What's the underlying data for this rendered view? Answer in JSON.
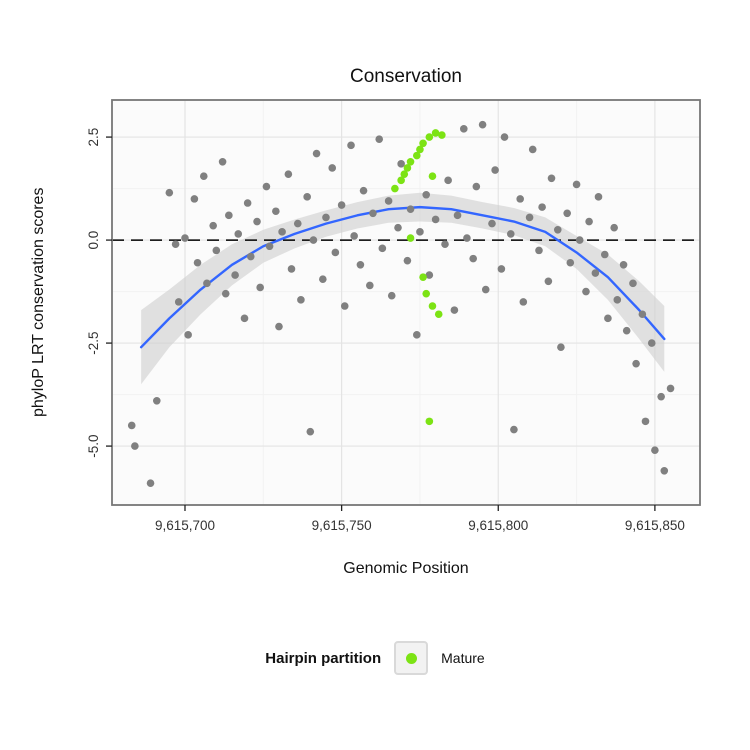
{
  "title": "Conservation",
  "axes": {
    "x_label": "Genomic Position",
    "y_label": "phyloP LRT conservation scores"
  },
  "legend": {
    "title": "Hairpin partition",
    "items": [
      {
        "label": "Mature",
        "color": "#7CE314"
      }
    ]
  },
  "colors": {
    "panel_bg": "#FBFBFB",
    "grid_major": "#E4E4E4",
    "grid_minor": "#F2F2F2",
    "panel_border": "#777777",
    "tick_text": "#333333",
    "point_other": "#808080",
    "point_mature": "#7CE314",
    "trend_line": "#3366FF",
    "ribbon": "#CFCFCF",
    "zero_line": "#000000"
  },
  "chart_data": {
    "type": "scatter",
    "title": "Conservation",
    "xlabel": "Genomic Position",
    "ylabel": "phyloP LRT conservation scores",
    "xlim": [
      9615676.7,
      9615864.4
    ],
    "ylim": [
      -6.43,
      3.4
    ],
    "x_ticks": {
      "values": [
        9615700,
        9615750,
        9615800,
        9615850
      ],
      "labels": [
        "9,615,700",
        "9,615,750",
        "9,615,800",
        "9,615,850"
      ]
    },
    "x_minor_ticks": [
      9615725,
      9615775,
      9615825
    ],
    "y_ticks": {
      "values": [
        2.5,
        0.0,
        -2.5,
        -5.0
      ],
      "labels": [
        "2.5",
        "0.0",
        "-2.5",
        "-5.0"
      ]
    },
    "y_minor_ticks": [
      1.25,
      -1.25,
      -3.75
    ],
    "reference_line_y": 0.0,
    "legend_position": "bottom",
    "grid": true,
    "series": [
      {
        "name": "Other",
        "type": "scatter",
        "color": "#808080",
        "points": [
          [
            9615683,
            -4.5
          ],
          [
            9615684,
            -5.0
          ],
          [
            9615689,
            -5.9
          ],
          [
            9615691,
            -3.9
          ],
          [
            9615695,
            1.15
          ],
          [
            9615697,
            -0.1
          ],
          [
            9615698,
            -1.5
          ],
          [
            9615700,
            0.05
          ],
          [
            9615701,
            -2.3
          ],
          [
            9615703,
            1.0
          ],
          [
            9615704,
            -0.55
          ],
          [
            9615706,
            1.55
          ],
          [
            9615707,
            -1.05
          ],
          [
            9615709,
            0.35
          ],
          [
            9615710,
            -0.25
          ],
          [
            9615712,
            1.9
          ],
          [
            9615713,
            -1.3
          ],
          [
            9615714,
            0.6
          ],
          [
            9615716,
            -0.85
          ],
          [
            9615717,
            0.15
          ],
          [
            9615719,
            -1.9
          ],
          [
            9615720,
            0.9
          ],
          [
            9615721,
            -0.4
          ],
          [
            9615723,
            0.45
          ],
          [
            9615724,
            -1.15
          ],
          [
            9615726,
            1.3
          ],
          [
            9615727,
            -0.15
          ],
          [
            9615729,
            0.7
          ],
          [
            9615730,
            -2.1
          ],
          [
            9615731,
            0.2
          ],
          [
            9615733,
            1.6
          ],
          [
            9615734,
            -0.7
          ],
          [
            9615736,
            0.4
          ],
          [
            9615737,
            -1.45
          ],
          [
            9615739,
            1.05
          ],
          [
            9615740,
            -4.65
          ],
          [
            9615741,
            0.0
          ],
          [
            9615742,
            2.1
          ],
          [
            9615744,
            -0.95
          ],
          [
            9615745,
            0.55
          ],
          [
            9615747,
            1.75
          ],
          [
            9615748,
            -0.3
          ],
          [
            9615750,
            0.85
          ],
          [
            9615751,
            -1.6
          ],
          [
            9615753,
            2.3
          ],
          [
            9615754,
            0.1
          ],
          [
            9615756,
            -0.6
          ],
          [
            9615757,
            1.2
          ],
          [
            9615759,
            -1.1
          ],
          [
            9615760,
            0.65
          ],
          [
            9615762,
            2.45
          ],
          [
            9615763,
            -0.2
          ],
          [
            9615765,
            0.95
          ],
          [
            9615766,
            -1.35
          ],
          [
            9615768,
            0.3
          ],
          [
            9615769,
            1.85
          ],
          [
            9615771,
            -0.5
          ],
          [
            9615772,
            0.75
          ],
          [
            9615774,
            -2.3
          ],
          [
            9615775,
            0.2
          ],
          [
            9615777,
            1.1
          ],
          [
            9615778,
            -0.85
          ],
          [
            9615780,
            0.5
          ],
          [
            9615783,
            -0.1
          ],
          [
            9615784,
            1.45
          ],
          [
            9615786,
            -1.7
          ],
          [
            9615787,
            0.6
          ],
          [
            9615789,
            2.7
          ],
          [
            9615790,
            0.05
          ],
          [
            9615792,
            -0.45
          ],
          [
            9615793,
            1.3
          ],
          [
            9615795,
            2.8
          ],
          [
            9615796,
            -1.2
          ],
          [
            9615798,
            0.4
          ],
          [
            9615799,
            1.7
          ],
          [
            9615801,
            -0.7
          ],
          [
            9615802,
            2.5
          ],
          [
            9615804,
            0.15
          ],
          [
            9615805,
            -4.6
          ],
          [
            9615807,
            1.0
          ],
          [
            9615808,
            -1.5
          ],
          [
            9615810,
            0.55
          ],
          [
            9615811,
            2.2
          ],
          [
            9615813,
            -0.25
          ],
          [
            9615814,
            0.8
          ],
          [
            9615816,
            -1.0
          ],
          [
            9615817,
            1.5
          ],
          [
            9615819,
            0.25
          ],
          [
            9615820,
            -2.6
          ],
          [
            9615822,
            0.65
          ],
          [
            9615823,
            -0.55
          ],
          [
            9615825,
            1.35
          ],
          [
            9615826,
            0.0
          ],
          [
            9615828,
            -1.25
          ],
          [
            9615829,
            0.45
          ],
          [
            9615831,
            -0.8
          ],
          [
            9615832,
            1.05
          ],
          [
            9615834,
            -0.35
          ],
          [
            9615835,
            -1.9
          ],
          [
            9615837,
            0.3
          ],
          [
            9615838,
            -1.45
          ],
          [
            9615840,
            -0.6
          ],
          [
            9615841,
            -2.2
          ],
          [
            9615843,
            -1.05
          ],
          [
            9615844,
            -3.0
          ],
          [
            9615846,
            -1.8
          ],
          [
            9615847,
            -4.4
          ],
          [
            9615849,
            -2.5
          ],
          [
            9615850,
            -5.1
          ],
          [
            9615852,
            -3.8
          ],
          [
            9615853,
            -5.6
          ],
          [
            9615855,
            -3.6
          ]
        ]
      },
      {
        "name": "Mature",
        "type": "scatter",
        "color": "#7CE314",
        "points": [
          [
            9615767,
            1.25
          ],
          [
            9615769,
            1.45
          ],
          [
            9615770,
            1.6
          ],
          [
            9615771,
            1.75
          ],
          [
            9615772,
            1.9
          ],
          [
            9615774,
            2.05
          ],
          [
            9615775,
            2.2
          ],
          [
            9615776,
            2.35
          ],
          [
            9615778,
            2.5
          ],
          [
            9615780,
            2.6
          ],
          [
            9615782,
            2.55
          ],
          [
            9615779,
            1.55
          ],
          [
            9615772,
            0.05
          ],
          [
            9615776,
            -0.9
          ],
          [
            9615777,
            -1.3
          ],
          [
            9615779,
            -1.6
          ],
          [
            9615781,
            -1.8
          ],
          [
            9615778,
            -4.4
          ]
        ]
      },
      {
        "name": "loess_fit",
        "type": "line",
        "color": "#3366FF",
        "x": [
          9615686,
          9615695,
          9615705,
          9615715,
          9615725,
          9615735,
          9615745,
          9615755,
          9615765,
          9615775,
          9615785,
          9615795,
          9615805,
          9615815,
          9615825,
          9615835,
          9615845,
          9615853
        ],
        "y": [
          -2.6,
          -1.9,
          -1.2,
          -0.6,
          -0.15,
          0.15,
          0.4,
          0.6,
          0.75,
          0.8,
          0.75,
          0.6,
          0.45,
          0.2,
          -0.3,
          -0.9,
          -1.7,
          -2.4
        ]
      },
      {
        "name": "confidence_ribbon",
        "type": "area",
        "color": "#CFCFCF",
        "x": [
          9615686,
          9615695,
          9615705,
          9615715,
          9615725,
          9615735,
          9615745,
          9615755,
          9615765,
          9615775,
          9615785,
          9615795,
          9615805,
          9615815,
          9615825,
          9615835,
          9615845,
          9615853
        ],
        "upper": [
          -1.7,
          -1.2,
          -0.6,
          -0.1,
          0.25,
          0.5,
          0.72,
          0.92,
          1.08,
          1.15,
          1.08,
          0.92,
          0.78,
          0.55,
          0.1,
          -0.35,
          -1.0,
          -1.6
        ],
        "lower": [
          -3.5,
          -2.6,
          -1.8,
          -1.1,
          -0.55,
          -0.2,
          0.08,
          0.28,
          0.42,
          0.45,
          0.42,
          0.28,
          0.12,
          -0.15,
          -0.7,
          -1.45,
          -2.4,
          -3.2
        ]
      }
    ]
  }
}
